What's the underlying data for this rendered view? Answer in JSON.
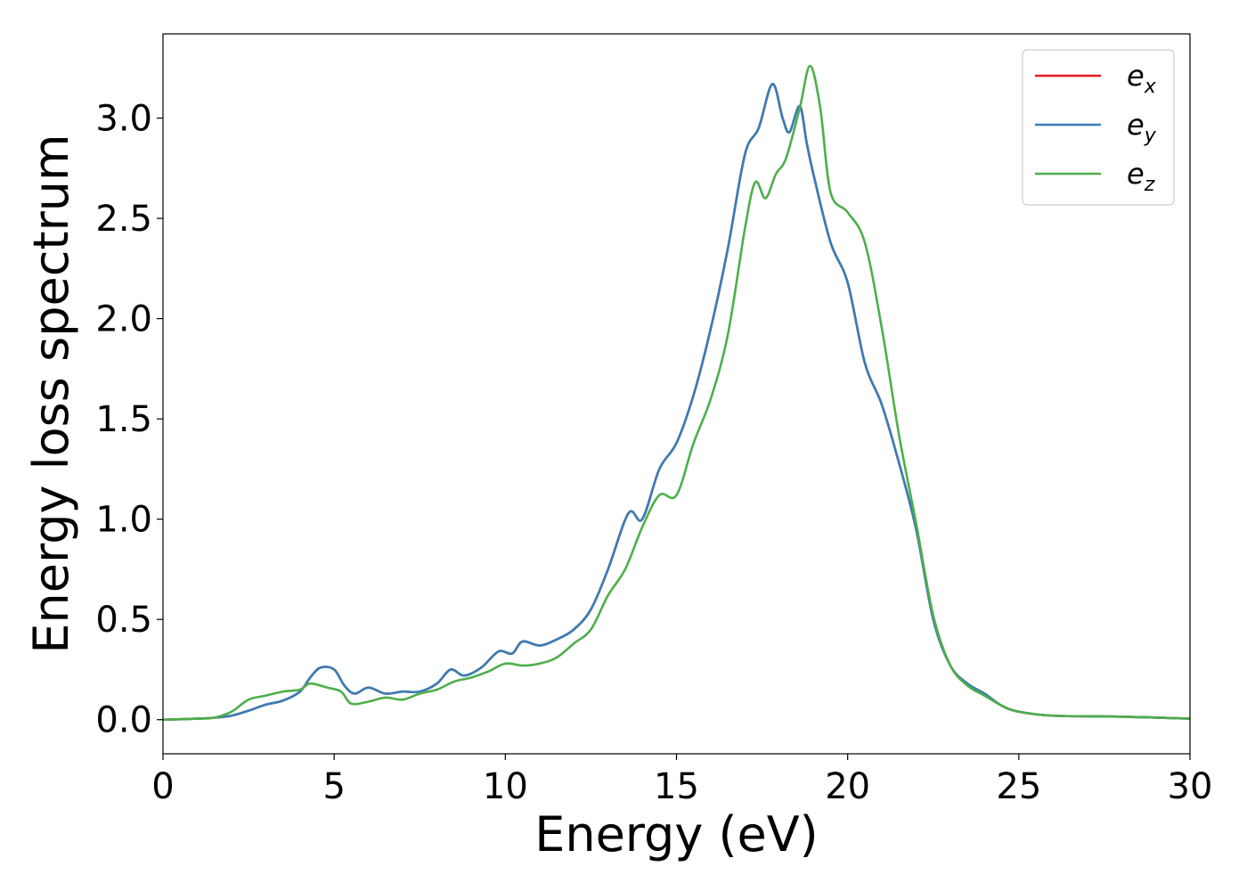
{
  "chart_data": {
    "type": "line",
    "title": "",
    "xlabel": "Energy (eV)",
    "ylabel": "Energy loss spectrum",
    "xlim": [
      0,
      30
    ],
    "ylim": [
      -0.17,
      3.42
    ],
    "xticks": [
      0,
      5,
      10,
      15,
      20,
      25,
      30
    ],
    "xtick_labels": [
      "0",
      "5",
      "10",
      "15",
      "20",
      "25",
      "30"
    ],
    "yticks": [
      0.0,
      0.5,
      1.0,
      1.5,
      2.0,
      2.5,
      3.0
    ],
    "ytick_labels": [
      "0.0",
      "0.5",
      "1.0",
      "1.5",
      "2.0",
      "2.5",
      "3.0"
    ],
    "grid": false,
    "legend_position": "top-right",
    "series": [
      {
        "name": "e_x",
        "legend_main": "e",
        "legend_sub": "x",
        "color": "#e41a1c",
        "x": [
          0,
          1,
          1.5,
          2,
          2.5,
          3,
          3.5,
          4,
          4.3,
          4.6,
          5,
          5.3,
          5.6,
          6,
          6.5,
          7,
          7.5,
          8,
          8.4,
          8.8,
          9.3,
          9.8,
          10.2,
          10.5,
          11,
          11.5,
          12,
          12.5,
          13,
          13.6,
          14,
          14.5,
          15,
          15.5,
          16,
          16.5,
          17,
          17.4,
          17.8,
          18.1,
          18.3,
          18.6,
          18.8,
          19,
          19.5,
          20,
          20.5,
          21,
          21.5,
          22,
          22.5,
          23,
          23.5,
          24,
          24.5,
          25,
          26,
          28,
          30
        ],
        "y": [
          0,
          0.005,
          0.01,
          0.02,
          0.045,
          0.075,
          0.095,
          0.14,
          0.21,
          0.26,
          0.25,
          0.17,
          0.13,
          0.16,
          0.13,
          0.14,
          0.14,
          0.18,
          0.25,
          0.22,
          0.26,
          0.34,
          0.33,
          0.39,
          0.37,
          0.4,
          0.45,
          0.55,
          0.75,
          1.03,
          1.0,
          1.25,
          1.38,
          1.62,
          1.95,
          2.35,
          2.82,
          2.95,
          3.17,
          3.0,
          2.93,
          3.06,
          2.88,
          2.72,
          2.38,
          2.18,
          1.78,
          1.57,
          1.28,
          0.95,
          0.5,
          0.27,
          0.18,
          0.13,
          0.07,
          0.04,
          0.02,
          0.015,
          0.005
        ]
      },
      {
        "name": "e_y",
        "legend_main": "e",
        "legend_sub": "y",
        "color": "#377eb8",
        "x": [
          0,
          1,
          1.5,
          2,
          2.5,
          3,
          3.5,
          4,
          4.3,
          4.6,
          5,
          5.3,
          5.6,
          6,
          6.5,
          7,
          7.5,
          8,
          8.4,
          8.8,
          9.3,
          9.8,
          10.2,
          10.5,
          11,
          11.5,
          12,
          12.5,
          13,
          13.6,
          14,
          14.5,
          15,
          15.5,
          16,
          16.5,
          17,
          17.4,
          17.8,
          18.1,
          18.3,
          18.6,
          18.8,
          19,
          19.5,
          20,
          20.5,
          21,
          21.5,
          22,
          22.5,
          23,
          23.5,
          24,
          24.5,
          25,
          26,
          28,
          30
        ],
        "y": [
          0,
          0.005,
          0.01,
          0.02,
          0.045,
          0.075,
          0.095,
          0.14,
          0.21,
          0.26,
          0.25,
          0.17,
          0.13,
          0.16,
          0.13,
          0.14,
          0.14,
          0.18,
          0.25,
          0.22,
          0.26,
          0.34,
          0.33,
          0.39,
          0.37,
          0.4,
          0.45,
          0.55,
          0.75,
          1.03,
          1.0,
          1.25,
          1.38,
          1.62,
          1.95,
          2.35,
          2.82,
          2.95,
          3.17,
          3.0,
          2.93,
          3.06,
          2.88,
          2.72,
          2.38,
          2.18,
          1.78,
          1.57,
          1.28,
          0.95,
          0.5,
          0.27,
          0.18,
          0.13,
          0.07,
          0.04,
          0.02,
          0.015,
          0.005
        ]
      },
      {
        "name": "e_z",
        "legend_main": "e",
        "legend_sub": "z",
        "color": "#4daf4a",
        "x": [
          0,
          1,
          1.5,
          2,
          2.5,
          3,
          3.5,
          4,
          4.3,
          4.8,
          5.2,
          5.5,
          6,
          6.5,
          7,
          7.5,
          8,
          8.5,
          9,
          9.5,
          10,
          10.5,
          11,
          11.5,
          12,
          12.5,
          13,
          13.5,
          14,
          14.5,
          15,
          15.5,
          16,
          16.5,
          17,
          17.3,
          17.6,
          17.9,
          18.2,
          18.6,
          18.9,
          19.2,
          19.5,
          20,
          20.5,
          21,
          21.5,
          22,
          22.5,
          23,
          23.5,
          24,
          24.5,
          25,
          26,
          28,
          30
        ],
        "y": [
          0,
          0.005,
          0.01,
          0.04,
          0.1,
          0.12,
          0.14,
          0.15,
          0.18,
          0.16,
          0.14,
          0.08,
          0.09,
          0.11,
          0.1,
          0.13,
          0.15,
          0.19,
          0.21,
          0.24,
          0.28,
          0.27,
          0.28,
          0.31,
          0.38,
          0.45,
          0.62,
          0.75,
          0.96,
          1.12,
          1.12,
          1.38,
          1.6,
          1.92,
          2.45,
          2.68,
          2.6,
          2.72,
          2.8,
          3.05,
          3.26,
          3.05,
          2.63,
          2.53,
          2.38,
          1.95,
          1.42,
          0.98,
          0.52,
          0.27,
          0.17,
          0.12,
          0.07,
          0.04,
          0.02,
          0.015,
          0.005
        ]
      }
    ]
  }
}
